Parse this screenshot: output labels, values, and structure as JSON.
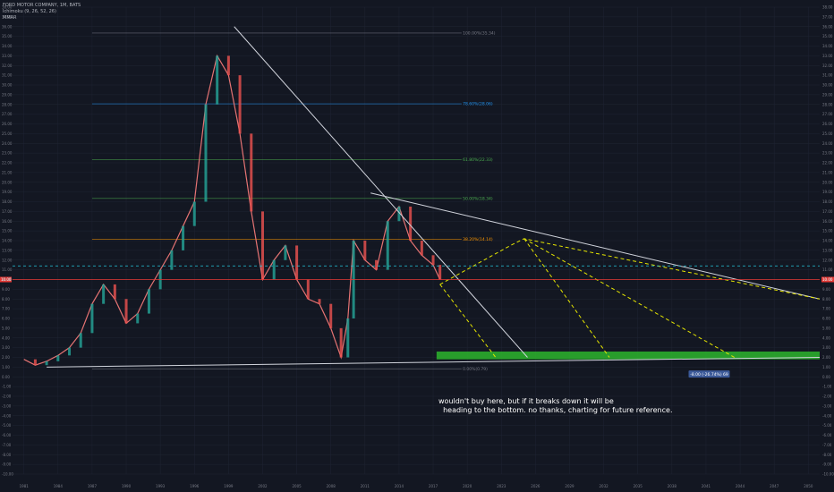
{
  "legend": {
    "symbol_line": "FORD MOTOR COMPANY, 1M, BATS",
    "indicator_1": "Ichimoku (9, 26, 52, 26)",
    "indicator_2": "MMAR"
  },
  "annotation": {
    "text": "wouldn't buy here, but if it breaks down it will be\n  heading to the bottom. no thanks, charting for future reference."
  },
  "colors": {
    "background": "#131722",
    "grid": "#1f2433",
    "axis_text": "#787b86",
    "trendline": "#d1d4dc",
    "projection": "#e6e600",
    "support_zone": "#2db52d",
    "current_price_line": "#e53935",
    "candle_up": "#26a69a",
    "candle_down": "#ef5350"
  },
  "chart_data": {
    "type": "line",
    "x_axis_labels": [
      "1981",
      "1984",
      "1987",
      "1990",
      "1993",
      "1996",
      "1999",
      "2002",
      "2005",
      "2008",
      "2011",
      "2014",
      "2017",
      "2020",
      "2023",
      "2026",
      "2029",
      "2032",
      "2035",
      "2038",
      "2041",
      "2044",
      "2047",
      "2050"
    ],
    "y_axis_labels": [
      "38.00",
      "37.00",
      "36.00",
      "35.00",
      "34.00",
      "33.00",
      "32.00",
      "31.00",
      "30.00",
      "29.00",
      "28.00",
      "27.00",
      "26.00",
      "25.00",
      "24.00",
      "23.00",
      "22.00",
      "21.00",
      "20.00",
      "19.00",
      "18.00",
      "17.00",
      "16.00",
      "15.00",
      "14.00",
      "13.00",
      "12.00",
      "11.00",
      "10.00",
      "9.00",
      "8.00",
      "7.00",
      "6.00",
      "5.00",
      "4.00",
      "3.00",
      "2.00",
      "1.00",
      "0.00",
      "-1.00",
      "-2.00",
      "-3.00",
      "-4.00",
      "-5.00",
      "-6.00",
      "-7.00",
      "-8.00",
      "-9.00",
      "-10.00"
    ],
    "ylim": [
      -10,
      38
    ],
    "xlim": [
      1980,
      2051
    ],
    "grid": true,
    "current_price": {
      "value": 10.0,
      "label": "10.00"
    },
    "dashed_level": {
      "value": 11.4
    },
    "fib_levels": [
      {
        "label": "100.00%(35.34)",
        "value": 35.34
      },
      {
        "label": "78.60%(28.06)",
        "value": 28.06
      },
      {
        "label": "61.80%(22.33)",
        "value": 22.33
      },
      {
        "label": "50.00%(18.34)",
        "value": 18.34
      },
      {
        "label": "38.20%(14.14)",
        "value": 14.14
      },
      {
        "label": "0.00%(0.79)",
        "value": 0.79
      }
    ],
    "price_range_label": "-8.00 (-26.74%) 69",
    "series": [
      {
        "x": [
          1981,
          1982,
          1983,
          1984,
          1985,
          1986,
          1987,
          1988,
          1989,
          1990,
          1991,
          1992,
          1993,
          1994,
          1995,
          1996,
          1997,
          1998,
          1999,
          2000,
          2001,
          2002,
          2003,
          2004,
          2005,
          2006,
          2007,
          2008,
          2008.9,
          2009.5,
          2010,
          2011,
          2012,
          2013,
          2014,
          2015,
          2016,
          2017,
          2017.6
        ],
        "values": [
          1.8,
          1.2,
          1.6,
          2.2,
          3.0,
          4.5,
          7.5,
          9.5,
          8.0,
          5.5,
          6.5,
          9.0,
          11.0,
          13.0,
          15.5,
          18.0,
          28.0,
          33.0,
          31.0,
          25.0,
          17.0,
          10.0,
          12.0,
          13.5,
          10.0,
          8.0,
          7.5,
          5.0,
          2.0,
          6.0,
          14.0,
          12.0,
          11.0,
          16.0,
          17.5,
          14.0,
          12.5,
          11.5,
          10.0
        ]
      }
    ],
    "trendlines": [
      {
        "x": [
          1999.5,
          2025.3
        ],
        "values": [
          36.0,
          2.0
        ]
      },
      {
        "x": [
          2011.5,
          2051.0
        ],
        "values": [
          18.9,
          8.0
        ]
      },
      {
        "x": [
          1983.0,
          2051.0
        ],
        "values": [
          1.0,
          2.0
        ]
      }
    ],
    "projections": [
      {
        "x": [
          2017.6,
          2023.8,
          2025.0,
          2051.0
        ],
        "values": [
          9.5,
          13.5,
          14.2,
          8.0
        ]
      },
      {
        "x": [
          2017.6,
          2022.5
        ],
        "values": [
          9.5,
          2.0
        ]
      },
      {
        "x": [
          2025.0,
          2032.5
        ],
        "values": [
          14.2,
          2.0
        ]
      },
      {
        "x": [
          2025.0,
          2043.5
        ],
        "values": [
          14.2,
          2.0
        ]
      }
    ],
    "support_zone": {
      "x": [
        2017.3,
        2051.0
      ],
      "values": [
        1.8,
        2.6
      ]
    }
  }
}
